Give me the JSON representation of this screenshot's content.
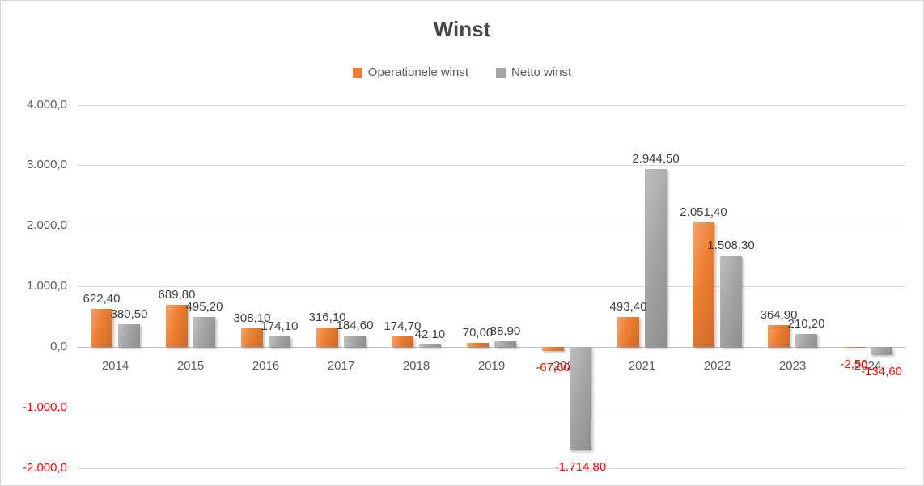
{
  "chart_data": {
    "type": "bar",
    "title": "Winst",
    "categories": [
      "2014",
      "2015",
      "2016",
      "2017",
      "2018",
      "2019",
      "2020",
      "2021",
      "2022",
      "2023",
      "2024"
    ],
    "series": [
      {
        "name": "Operationele winst",
        "color": "#ED7D31",
        "values": [
          622.4,
          689.8,
          308.1,
          316.1,
          174.7,
          70.0,
          -67.6,
          493.4,
          2051.4,
          364.9,
          -2.5
        ],
        "labels": [
          "622,40",
          "689,80",
          "308,10",
          "316,10",
          "174,70",
          "70,00",
          "-67,60",
          "493,40",
          "2.051,40",
          "364,90",
          "-2,50"
        ]
      },
      {
        "name": "Netto winst",
        "color": "#A5A5A5",
        "values": [
          380.5,
          495.2,
          174.1,
          184.6,
          42.1,
          88.9,
          -1714.8,
          2944.5,
          1508.3,
          210.2,
          -134.6
        ],
        "labels": [
          "380,50",
          "495,20",
          "174,10",
          "184,60",
          "42,10",
          "88,90",
          "-1.714,80",
          "2.944,50",
          "1.508,30",
          "210,20",
          "-134,60"
        ]
      }
    ],
    "ylim": [
      -2000,
      4000
    ],
    "ytick_interval": 1000,
    "ytick_labels": [
      "4.000,0",
      "3.000,0",
      "2.000,0",
      "1.000,0",
      "0,0",
      "-1.000,0",
      "-2.000,0"
    ],
    "grid": true,
    "legend_position": "top",
    "colors": {
      "positive_label": "#404040",
      "negative_label": "#FF0000",
      "axis_label": "#595959"
    }
  }
}
